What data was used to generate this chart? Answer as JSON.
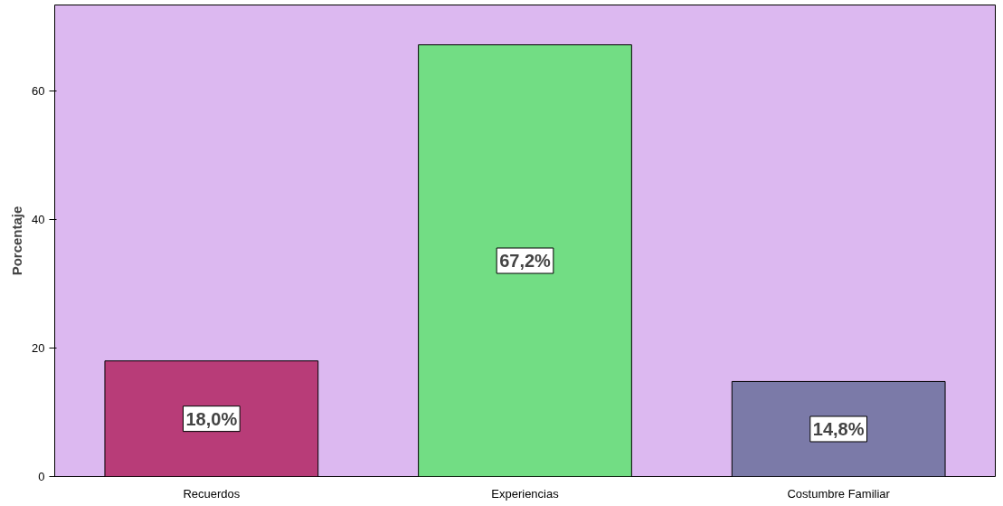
{
  "chart_data": {
    "type": "bar",
    "ylabel": "Porcentaje",
    "categories": [
      "Recuerdos",
      "Experiencias",
      "Costumbre Familiar"
    ],
    "values": [
      18.0,
      67.2,
      14.8
    ],
    "colors": [
      "#b83c78",
      "#72dd84",
      "#7b7aa8"
    ],
    "value_labels": [
      "18,0%",
      "67,2%",
      "14,8%"
    ],
    "ylim": [
      0,
      73.4
    ],
    "yticks": [
      0,
      20,
      40,
      60
    ],
    "grid": false
  }
}
